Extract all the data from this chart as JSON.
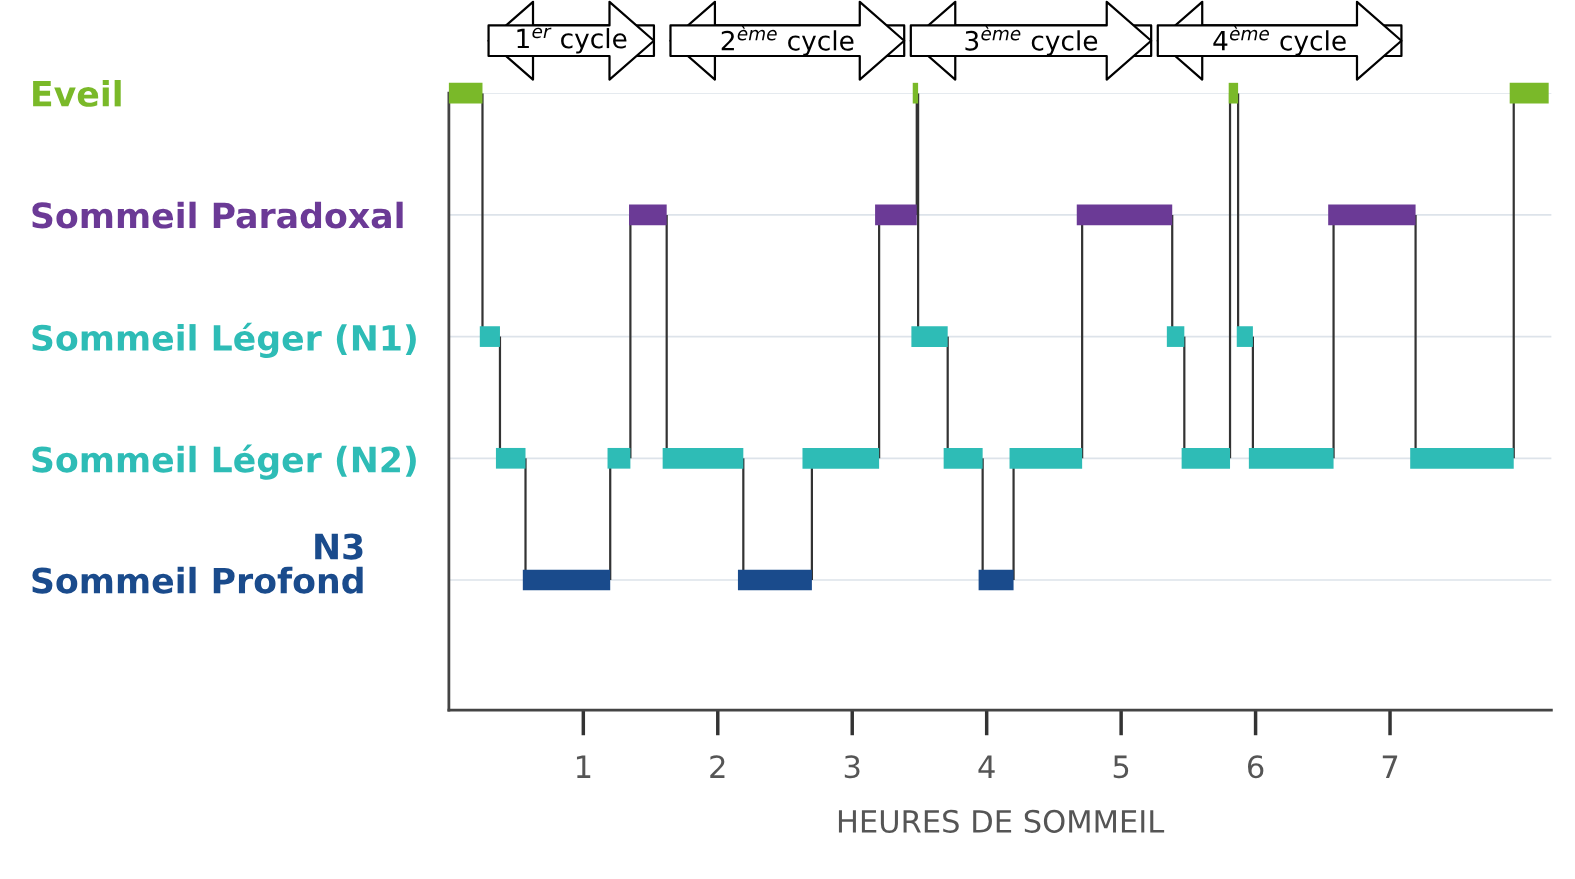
{
  "chart_data": {
    "type": "bar",
    "orientation": "horizontal",
    "xlabel": "HEURES DE SOMMEIL",
    "categories": [
      "Eveil",
      "Sommeil Paradoxal",
      "Sommeil Léger (N1)",
      "Sommeil Léger (N2)",
      "Sommeil Profond"
    ],
    "xlim": [
      0,
      8.2
    ],
    "xticks": [
      1,
      2,
      3,
      4,
      5,
      6,
      7
    ],
    "grid": "y",
    "annotations": [
      "N3",
      "1$^{er}$ cycle",
      "2$^{ème}$ cycle",
      "3$^{ème}$ cycle",
      "4$^{ème}$ cycle"
    ],
    "series": [
      {
        "color": "#7ab929",
        "base": [
          0,
          null,
          null,
          null,
          null
        ],
        "values": [
          0.25,
          null,
          null,
          null,
          null
        ]
      },
      {
        "color": "#2ebcb6",
        "base": [
          null,
          null,
          0.23,
          null,
          null
        ],
        "values": [
          null,
          null,
          0.15,
          null,
          null
        ]
      },
      {
        "color": "#2ebcb6",
        "base": [
          null,
          null,
          null,
          0.35,
          null
        ],
        "values": [
          null,
          null,
          null,
          0.22,
          null
        ]
      },
      {
        "color": "#1a4b8c",
        "base": [
          null,
          null,
          null,
          null,
          0.55
        ],
        "values": [
          null,
          null,
          null,
          null,
          0.65
        ]
      },
      {
        "color": "#2ebcb6",
        "base": [
          null,
          null,
          null,
          1.18,
          null
        ],
        "values": [
          null,
          null,
          null,
          0.17,
          null
        ]
      },
      {
        "color": "#6b3a96",
        "base": [
          null,
          1.34,
          null,
          null,
          null
        ],
        "values": [
          null,
          0.28,
          null,
          null,
          null
        ]
      },
      {
        "color": "#2ebcb6",
        "base": [
          null,
          null,
          null,
          1.59,
          null
        ],
        "values": [
          null,
          null,
          null,
          0.6,
          null
        ]
      },
      {
        "color": "#1a4b8c",
        "base": [
          null,
          null,
          null,
          null,
          2.15
        ],
        "values": [
          null,
          null,
          null,
          null,
          0.55
        ]
      },
      {
        "color": "#2ebcb6",
        "base": [
          null,
          null,
          null,
          2.63,
          null
        ],
        "values": [
          null,
          null,
          null,
          0.57,
          null
        ]
      },
      {
        "color": "#6b3a96",
        "base": [
          null,
          3.17,
          null,
          null,
          null
        ],
        "values": [
          null,
          0.31,
          null,
          null,
          null
        ]
      },
      {
        "color": "#7ab929",
        "base": [
          3.45,
          null,
          null,
          null,
          null
        ],
        "values": [
          0.04,
          null,
          null,
          null,
          null
        ]
      },
      {
        "color": "#2ebcb6",
        "base": [
          null,
          null,
          3.44,
          null,
          null
        ],
        "values": [
          null,
          null,
          0.27,
          null,
          null
        ]
      },
      {
        "color": "#2ebcb6",
        "base": [
          null,
          null,
          null,
          3.68,
          null
        ],
        "values": [
          null,
          null,
          null,
          0.29,
          null
        ]
      },
      {
        "color": "#1a4b8c",
        "base": [
          null,
          null,
          null,
          null,
          3.94
        ],
        "values": [
          null,
          null,
          null,
          null,
          0.26
        ]
      },
      {
        "color": "#2ebcb6",
        "base": [
          null,
          null,
          null,
          4.17,
          null
        ],
        "values": [
          null,
          null,
          null,
          0.54,
          null
        ]
      },
      {
        "color": "#6b3a96",
        "base": [
          null,
          4.67,
          null,
          null,
          null
        ],
        "values": [
          null,
          0.71,
          null,
          null,
          null
        ]
      },
      {
        "color": "#2ebcb6",
        "base": [
          null,
          null,
          5.34,
          null,
          null
        ],
        "values": [
          null,
          null,
          0.13,
          null,
          null
        ]
      },
      {
        "color": "#2ebcb6",
        "base": [
          null,
          null,
          null,
          5.45,
          null
        ],
        "values": [
          null,
          null,
          null,
          0.36,
          null
        ]
      },
      {
        "color": "#7ab929",
        "base": [
          5.8,
          null,
          null,
          null,
          null
        ],
        "values": [
          0.07,
          null,
          null,
          null,
          null
        ]
      },
      {
        "color": "#2ebcb6",
        "base": [
          null,
          null,
          5.86,
          null,
          null
        ],
        "values": [
          null,
          null,
          0.12,
          null,
          null
        ]
      },
      {
        "color": "#2ebcb6",
        "base": [
          null,
          null,
          null,
          5.95,
          null
        ],
        "values": [
          null,
          null,
          null,
          0.63,
          null
        ]
      },
      {
        "color": "#6b3a96",
        "base": [
          null,
          6.54,
          null,
          null,
          null
        ],
        "values": [
          null,
          0.65,
          null,
          null,
          null
        ]
      },
      {
        "color": "#2ebcb6",
        "base": [
          null,
          null,
          null,
          7.15,
          null
        ],
        "values": [
          null,
          null,
          null,
          0.77,
          null
        ]
      },
      {
        "color": "#7ab929",
        "base": [
          7.89,
          null,
          null,
          null,
          null
        ],
        "values": [
          0.29,
          null,
          null,
          null,
          null
        ]
      }
    ]
  }
}
